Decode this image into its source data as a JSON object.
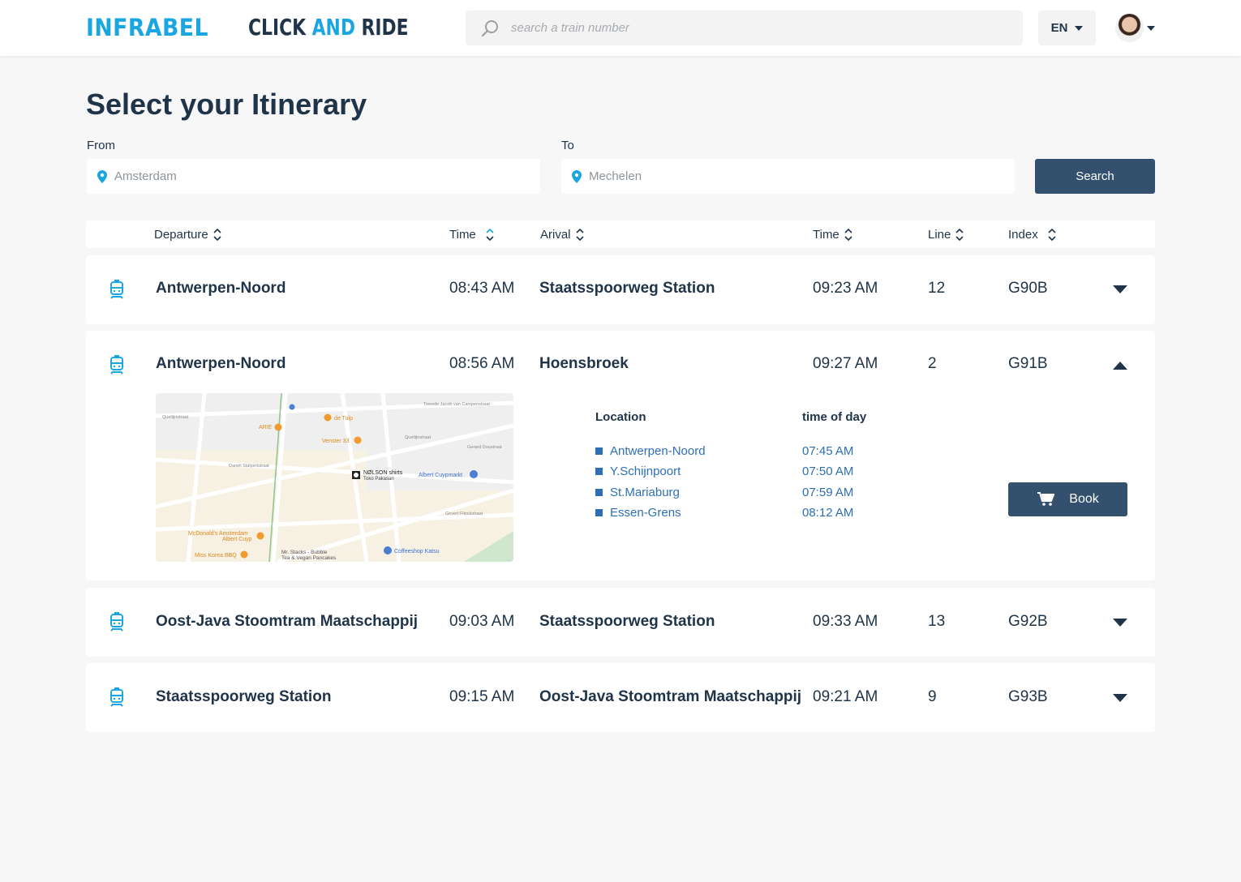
{
  "header": {
    "logo_infrabel": "INFRABEL",
    "logo_click": "CLICK",
    "logo_and": "AND",
    "logo_ride": "RIDE",
    "search_placeholder": "search a train number",
    "language": "EN"
  },
  "page": {
    "title": "Select your Itinerary",
    "from_label": "From",
    "from_value": "Amsterdam",
    "to_label": "To",
    "to_value": "Mechelen",
    "search_button": "Search"
  },
  "table": {
    "columns": [
      "Departure",
      "Time",
      "Arival",
      "Time",
      "Line",
      "Index"
    ],
    "rows": [
      {
        "departure": "Antwerpen-Noord",
        "dep_time": "08:43 AM",
        "arrival": "Staatsspoorweg Station",
        "arr_time": "09:23 AM",
        "line": "12",
        "index": "G90B",
        "expanded": false
      },
      {
        "departure": "Antwerpen-Noord",
        "dep_time": "08:56 AM",
        "arrival": "Hoensbroek",
        "arr_time": "09:27 AM",
        "line": "2",
        "index": "G91B",
        "expanded": true
      },
      {
        "departure": "Oost-Java Stoomtram Maatschappij",
        "dep_time": "09:03 AM",
        "arrival": "Staatsspoorweg Station",
        "arr_time": "09:33 AM",
        "line": "13",
        "index": "G92B",
        "expanded": false
      },
      {
        "departure": "Staatsspoorweg Station",
        "dep_time": "09:15 AM",
        "arrival": "Oost-Java Stoomtram Maatschappij",
        "arr_time": "09:21 AM",
        "line": "9",
        "index": "G93B",
        "expanded": false
      }
    ]
  },
  "details": {
    "location_header": "Location",
    "time_header": "time of day",
    "stops": [
      {
        "name": "Antwerpen-Noord",
        "time": "07:45 AM"
      },
      {
        "name": "Y.Schijnpoort",
        "time": "07:50 AM"
      },
      {
        "name": "St.Mariaburg",
        "time": "07:59 AM"
      },
      {
        "name": "Essen-Grens",
        "time": "08:12 AM"
      }
    ],
    "book_button": "Book",
    "map_labels": {
      "arie": "ARIE",
      "de_tulp": "de Tulp",
      "venster": "Venster 33",
      "nolson": "NØLSON shirts",
      "toko": "Toko Pakasan",
      "albert": "Albert Cuypmarkt",
      "mcdonalds": "McDonald's Amsterdam",
      "mcdonalds2": "Albert Cuyp",
      "misskorea": "Miss Korea BBQ",
      "mrstacks": "Mr. Stacks - Bubble",
      "mrstacks2": "Tea & Vegan Pancakes",
      "coffeeshop": "Coffeeshop Katsu",
      "quellijn": "Quellijnstraat",
      "quellijn2": "Quellijnstraat",
      "stalpert": "Daniël Stalpertstraat",
      "jacob": "Tweede Jacob van Campenstraat",
      "gerard": "Gerard Doustraat",
      "govert": "Govert Flinckstraat"
    }
  },
  "colors": {
    "accent": "#1aa6e0",
    "primary": "#34506f",
    "text": "#1f3349",
    "link": "#2d6fb4"
  }
}
